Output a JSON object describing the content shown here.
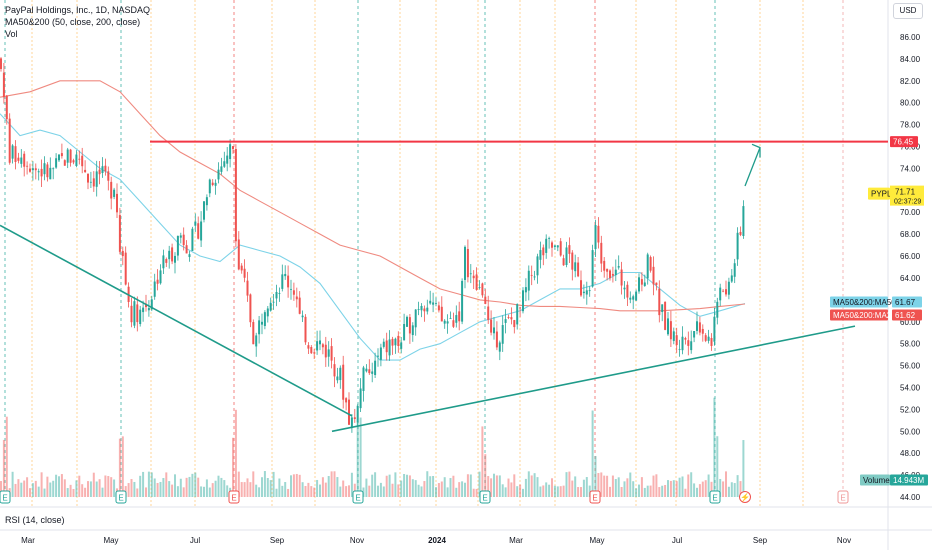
{
  "header": {
    "title": "PayPal Holdings, Inc., 1D, NASDAQ",
    "indicator": "MA50&200 (50, close, 200, close)",
    "volume": "Vol"
  },
  "rsi_label": "RSI (14, close)",
  "currency": "USD",
  "colors": {
    "up": "#26a69a",
    "down": "#ef5350",
    "ma50": "#7dd3e8",
    "ma200": "#ef8a80",
    "resistance": "#f23645",
    "trend": "#1f9b8a",
    "price_tag": "#ffeb3b"
  },
  "chart_data": {
    "type": "candlestick",
    "title": "PayPal Holdings, Inc., 1D, NASDAQ",
    "ylim": [
      43,
      87
    ],
    "yticks": [
      44,
      46,
      48,
      50,
      52,
      54,
      56,
      58,
      60,
      62,
      64,
      66,
      68,
      70,
      72,
      74,
      76,
      78,
      80,
      82,
      84,
      86
    ],
    "xlabels": [
      "Mar",
      "May",
      "Jul",
      "Sep",
      "Nov",
      "2024",
      "Mar",
      "May",
      "Jul",
      "Sep",
      "Nov"
    ],
    "close_path": [
      [
        0,
        84
      ],
      [
        10,
        75
      ],
      [
        20,
        75.5
      ],
      [
        35,
        74
      ],
      [
        50,
        73.5
      ],
      [
        65,
        75
      ],
      [
        80,
        75
      ],
      [
        90,
        73
      ],
      [
        100,
        73.5
      ],
      [
        110,
        72
      ],
      [
        115,
        73
      ],
      [
        120,
        66.5
      ],
      [
        125,
        64
      ],
      [
        130,
        61
      ],
      [
        140,
        61
      ],
      [
        150,
        62
      ],
      [
        160,
        65
      ],
      [
        170,
        66
      ],
      [
        180,
        68
      ],
      [
        190,
        67
      ],
      [
        200,
        69
      ],
      [
        210,
        73
      ],
      [
        220,
        74
      ],
      [
        228,
        75.5
      ],
      [
        233,
        76
      ],
      [
        237,
        65.5
      ],
      [
        245,
        63
      ],
      [
        255,
        58
      ],
      [
        265,
        62
      ],
      [
        275,
        63
      ],
      [
        285,
        64
      ],
      [
        295,
        63
      ],
      [
        300,
        60
      ],
      [
        310,
        58
      ],
      [
        320,
        58
      ],
      [
        330,
        57
      ],
      [
        340,
        55
      ],
      [
        350,
        51
      ],
      [
        355,
        51
      ],
      [
        360,
        55
      ],
      [
        370,
        55
      ],
      [
        380,
        57
      ],
      [
        390,
        58
      ],
      [
        400,
        58
      ],
      [
        410,
        60
      ],
      [
        420,
        62
      ],
      [
        430,
        62
      ],
      [
        440,
        60
      ],
      [
        450,
        60
      ],
      [
        460,
        61
      ],
      [
        465,
        66
      ],
      [
        475,
        63
      ],
      [
        485,
        63
      ],
      [
        490,
        58
      ],
      [
        500,
        59
      ],
      [
        510,
        60
      ],
      [
        520,
        61
      ],
      [
        530,
        64
      ],
      [
        540,
        66
      ],
      [
        550,
        67
      ],
      [
        560,
        66
      ],
      [
        570,
        66
      ],
      [
        580,
        63
      ],
      [
        590,
        64
      ],
      [
        595,
        68
      ],
      [
        600,
        66
      ],
      [
        610,
        65
      ],
      [
        620,
        64
      ],
      [
        630,
        63
      ],
      [
        640,
        63
      ],
      [
        650,
        66
      ],
      [
        655,
        63
      ],
      [
        660,
        61
      ],
      [
        670,
        59
      ],
      [
        680,
        58
      ],
      [
        690,
        59
      ],
      [
        700,
        60
      ],
      [
        710,
        58
      ],
      [
        715,
        60
      ],
      [
        720,
        64
      ],
      [
        725,
        61
      ],
      [
        730,
        64
      ],
      [
        735,
        66
      ],
      [
        740,
        68
      ],
      [
        745,
        71.7
      ]
    ],
    "series": [
      {
        "name": "MA50",
        "points": [
          [
            0,
            79
          ],
          [
            20,
            77
          ],
          [
            40,
            77.5
          ],
          [
            60,
            77
          ],
          [
            80,
            75.5
          ],
          [
            100,
            74
          ],
          [
            120,
            73
          ],
          [
            140,
            71
          ],
          [
            160,
            69
          ],
          [
            180,
            67
          ],
          [
            200,
            66
          ],
          [
            220,
            65.5
          ],
          [
            240,
            67
          ],
          [
            260,
            66.5
          ],
          [
            280,
            66
          ],
          [
            300,
            65
          ],
          [
            320,
            63.5
          ],
          [
            340,
            61
          ],
          [
            360,
            58.5
          ],
          [
            380,
            56.5
          ],
          [
            400,
            56.5
          ],
          [
            420,
            57.5
          ],
          [
            440,
            58
          ],
          [
            460,
            59
          ],
          [
            480,
            60
          ],
          [
            500,
            60.5
          ],
          [
            520,
            61
          ],
          [
            540,
            62
          ],
          [
            560,
            63
          ],
          [
            580,
            63
          ],
          [
            600,
            63.5
          ],
          [
            620,
            64.5
          ],
          [
            640,
            64.5
          ],
          [
            660,
            63
          ],
          [
            680,
            61.5
          ],
          [
            700,
            60.5
          ],
          [
            720,
            61
          ],
          [
            745,
            61.67
          ]
        ]
      },
      {
        "name": "MA200",
        "points": [
          [
            0,
            80.5
          ],
          [
            30,
            81
          ],
          [
            60,
            82
          ],
          [
            100,
            82
          ],
          [
            120,
            81
          ],
          [
            140,
            79
          ],
          [
            160,
            77
          ],
          [
            180,
            75.5
          ],
          [
            200,
            74.5
          ],
          [
            220,
            73.5
          ],
          [
            240,
            72
          ],
          [
            260,
            71
          ],
          [
            280,
            70
          ],
          [
            300,
            69
          ],
          [
            320,
            68
          ],
          [
            340,
            67
          ],
          [
            360,
            66.5
          ],
          [
            380,
            66
          ],
          [
            400,
            65
          ],
          [
            420,
            64
          ],
          [
            440,
            63
          ],
          [
            460,
            62.5
          ],
          [
            480,
            62
          ],
          [
            500,
            61.8
          ],
          [
            520,
            61.5
          ],
          [
            540,
            61.4
          ],
          [
            560,
            61.4
          ],
          [
            580,
            61.3
          ],
          [
            600,
            61.2
          ],
          [
            620,
            61
          ],
          [
            640,
            61
          ],
          [
            660,
            61
          ],
          [
            680,
            61.1
          ],
          [
            700,
            61.2
          ],
          [
            720,
            61.4
          ],
          [
            745,
            61.62
          ]
        ]
      }
    ],
    "resistance_level": 76.45,
    "price_tags": {
      "resistance": "76.45",
      "last_price": "71.71",
      "countdown": "02:37:29",
      "symbol": "PYPL",
      "ma50_label": "MA50&200:MA50",
      "ma50_value": "61.67",
      "ma200_label": "MA50&200:MA200",
      "ma200_value": "61.62",
      "volume_label": "Volume",
      "volume_value": "14.943M"
    },
    "events": [
      {
        "label": "E",
        "type": "earnings"
      },
      {
        "label": "E",
        "type": "earnings"
      },
      {
        "label": "E",
        "type": "earnings-negative"
      },
      {
        "label": "E",
        "type": "earnings"
      },
      {
        "label": "E",
        "type": "earnings"
      },
      {
        "label": "E",
        "type": "earnings-negative"
      },
      {
        "label": "E",
        "type": "earnings"
      },
      {
        "label": "⚡",
        "type": "dividend-alert"
      },
      {
        "label": "E",
        "type": "earnings-future"
      }
    ]
  }
}
